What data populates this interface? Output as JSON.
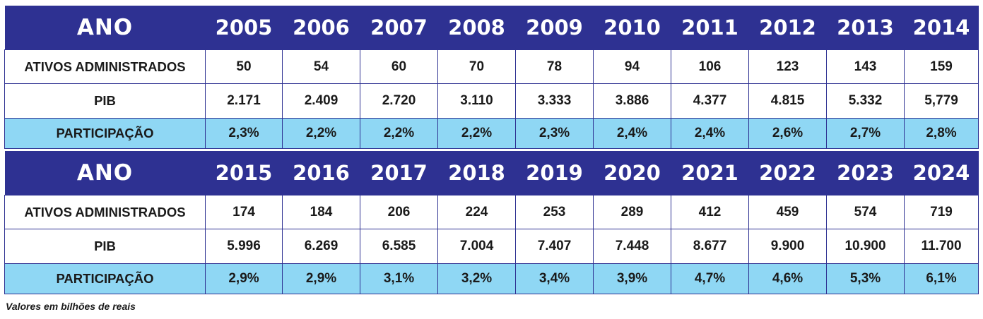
{
  "row_labels": {
    "ano": "ANO",
    "ativos": "ATIVOS ADMINISTRADOS",
    "pib": "PIB",
    "participacao": "PARTICIPAÇÃO"
  },
  "tables": [
    {
      "years": [
        "2005",
        "2006",
        "2007",
        "2008",
        "2009",
        "2010",
        "2011",
        "2012",
        "2013",
        "2014"
      ],
      "ativos": [
        "50",
        "54",
        "60",
        "70",
        "78",
        "94",
        "106",
        "123",
        "143",
        "159"
      ],
      "pib": [
        "2.171",
        "2.409",
        "2.720",
        "3.110",
        "3.333",
        "3.886",
        "4.377",
        "4.815",
        "5.332",
        "5,779"
      ],
      "participacao": [
        "2,3%",
        "2,2%",
        "2,2%",
        "2,2%",
        "2,3%",
        "2,4%",
        "2,4%",
        "2,6%",
        "2,7%",
        "2,8%"
      ]
    },
    {
      "years": [
        "2015",
        "2016",
        "2017",
        "2018",
        "2019",
        "2020",
        "2021",
        "2022",
        "2023",
        "2024"
      ],
      "ativos": [
        "174",
        "184",
        "206",
        "224",
        "253",
        "289",
        "412",
        "459",
        "574",
        "719"
      ],
      "pib": [
        "5.996",
        "6.269",
        "6.585",
        "7.004",
        "7.407",
        "7.448",
        "8.677",
        "9.900",
        "10.900",
        "11.700"
      ],
      "participacao": [
        "2,9%",
        "2,9%",
        "3,1%",
        "3,2%",
        "3,4%",
        "3,9%",
        "4,7%",
        "4,6%",
        "5,3%",
        "6,1%"
      ]
    }
  ],
  "note": "Valores em bilhões de reais",
  "colors": {
    "header_bg": "#2e3192",
    "participacao_bg": "#8fd7f4"
  }
}
